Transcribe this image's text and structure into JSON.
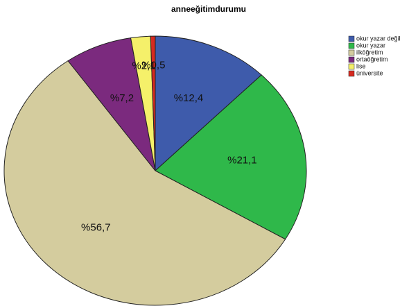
{
  "chart_data": {
    "type": "pie",
    "title": "anneeğitimdurumu",
    "categories": [
      "okur yazar değil",
      "okur yazar",
      "ilköğretim",
      "ortaöğretim",
      "lise",
      "üniversite"
    ],
    "values": [
      12.4,
      21.1,
      56.7,
      7.2,
      2.1,
      0.5
    ],
    "value_labels": [
      "%12,4",
      "%21,1",
      "%56,7",
      "%7,2",
      "%2,1",
      "%0,5"
    ],
    "colors": [
      "#3e5bab",
      "#2fb84a",
      "#d4cc9e",
      "#7b2a7e",
      "#f5f06a",
      "#d62a20"
    ],
    "legend": "top-right"
  }
}
